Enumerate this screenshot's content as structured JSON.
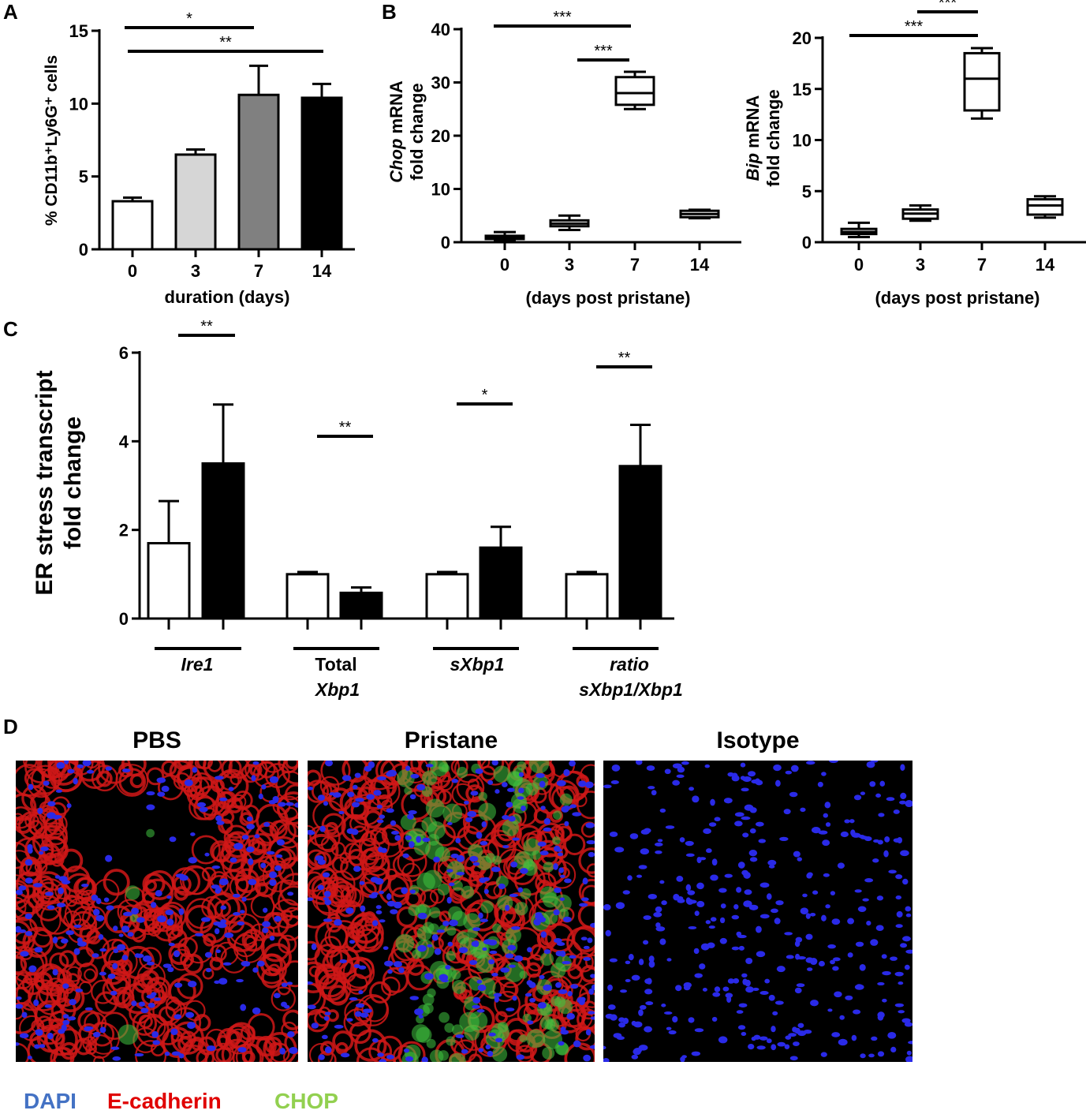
{
  "panels": {
    "a": "A",
    "b": "B",
    "c": "C",
    "d": "D"
  },
  "chart_data": [
    {
      "id": "A",
      "type": "bar",
      "categories": [
        "0",
        "3",
        "7",
        "14"
      ],
      "values": [
        3.3,
        6.5,
        10.6,
        10.4
      ],
      "errors": [
        0.25,
        0.35,
        2.0,
        0.95
      ],
      "colors": [
        "#ffffff",
        "#d6d6d6",
        "#808080",
        "#000000"
      ],
      "xlabel": "duration (days)",
      "ylabel": "% CD11b⁺Ly6G⁺ cells",
      "ylim": [
        0,
        15
      ],
      "yticks": [
        0,
        5,
        10,
        15
      ],
      "significance": [
        {
          "from": "0",
          "to": "7",
          "label": "*"
        },
        {
          "from": "0",
          "to": "14",
          "label": "**"
        }
      ]
    },
    {
      "id": "B-Chop",
      "type": "box",
      "categories": [
        "0",
        "3",
        "7",
        "14"
      ],
      "boxes": [
        {
          "min": 0.2,
          "q1": 0.6,
          "median": 1.0,
          "q3": 1.2,
          "max": 1.9
        },
        {
          "min": 2.3,
          "q1": 3.0,
          "median": 3.5,
          "q3": 4.1,
          "max": 5.0
        },
        {
          "min": 25.0,
          "q1": 25.8,
          "median": 28.0,
          "q3": 31.0,
          "max": 32.0
        },
        {
          "min": 4.5,
          "q1": 4.7,
          "median": 5.3,
          "q3": 5.9,
          "max": 6.1
        }
      ],
      "xlabel": "(days post pristane)",
      "ylabel_italic": "Chop",
      "ylabel_rest": " mRNA",
      "ylabel_line2": "fold change",
      "ylim": [
        0,
        40
      ],
      "yticks": [
        0,
        10,
        20,
        30,
        40
      ],
      "significance": [
        {
          "from": "0",
          "to": "7",
          "label": "***"
        },
        {
          "from": "3",
          "to": "7",
          "label": "***"
        }
      ]
    },
    {
      "id": "B-Bip",
      "type": "box",
      "categories": [
        "0",
        "3",
        "7",
        "14"
      ],
      "boxes": [
        {
          "min": 0.5,
          "q1": 0.8,
          "median": 1.0,
          "q3": 1.3,
          "max": 1.9
        },
        {
          "min": 2.1,
          "q1": 2.3,
          "median": 2.8,
          "q3": 3.2,
          "max": 3.6
        },
        {
          "min": 12.1,
          "q1": 12.9,
          "median": 16.0,
          "q3": 18.5,
          "max": 19.0
        },
        {
          "min": 2.4,
          "q1": 2.7,
          "median": 3.6,
          "q3": 4.2,
          "max": 4.5
        }
      ],
      "xlabel": "(days post pristane)",
      "ylabel_italic": "Bip",
      "ylabel_rest": " mRNA",
      "ylabel_line2": "fold change",
      "ylim": [
        0,
        20
      ],
      "yticks": [
        0,
        5,
        10,
        15,
        20
      ],
      "significance": [
        {
          "from": "0",
          "to": "7",
          "label": "***"
        },
        {
          "from": "3",
          "to": "7",
          "label": "***"
        }
      ]
    },
    {
      "id": "C",
      "type": "bar",
      "groups": [
        {
          "label_line1": "Ire1",
          "label_line2": "",
          "italic": [
            true,
            false
          ]
        },
        {
          "label_line1": "Total",
          "label_line2": "Xbp1",
          "italic": [
            false,
            true
          ]
        },
        {
          "label_line1": "sXbp1",
          "label_line2": "",
          "italic": [
            true,
            false
          ]
        },
        {
          "label_line1": "ratio",
          "label_line2": "sXbp1/Xbp1",
          "italic": [
            true,
            true
          ]
        }
      ],
      "series": [
        {
          "fill": "#ffffff",
          "values": [
            1.7,
            1.0,
            1.0,
            1.0
          ],
          "errors": [
            0.95,
            0.05,
            0.05,
            0.05
          ]
        },
        {
          "fill": "#000000",
          "values": [
            3.5,
            0.58,
            1.6,
            3.44
          ],
          "errors": [
            1.33,
            0.12,
            0.47,
            0.93
          ]
        }
      ],
      "ylabel": "ER stress transcript",
      "ylabel_line2": "fold change",
      "ylim": [
        0,
        6
      ],
      "yticks": [
        0,
        2,
        4,
        6
      ],
      "significance": [
        "**",
        "**",
        "*",
        "**"
      ]
    }
  ],
  "micrographs": [
    {
      "title": "PBS",
      "channels": [
        "red",
        "blue",
        "green-sparse"
      ]
    },
    {
      "title": "Pristane",
      "channels": [
        "red",
        "blue",
        "green"
      ]
    },
    {
      "title": "Isotype",
      "channels": [
        "blue"
      ]
    }
  ],
  "legend": [
    {
      "label": "DAPI",
      "color": "#4472c4"
    },
    {
      "label": "E-cadherin",
      "color": "#e00000"
    },
    {
      "label": "CHOP",
      "color": "#92d050"
    }
  ]
}
